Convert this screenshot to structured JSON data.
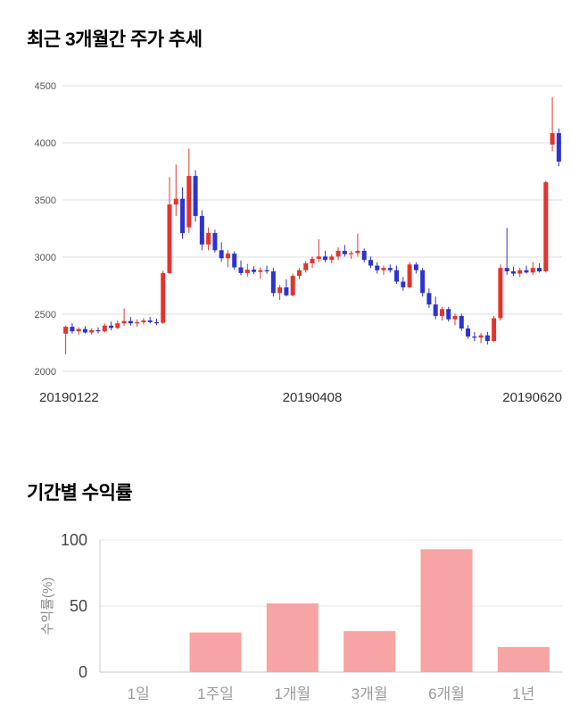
{
  "page": {
    "background": "#ffffff"
  },
  "chart_data": [
    {
      "type": "candlestick",
      "title": "최근 3개월간 주가 추세",
      "ylim": [
        2000,
        4500
      ],
      "yticks": [
        2000,
        2500,
        3000,
        3500,
        4000,
        4500
      ],
      "xtick_labels": [
        "20190122",
        "20190408",
        "20190620"
      ],
      "up_color": "#e3342c",
      "down_color": "#2d33cf",
      "grid_color": "#dcdcdc",
      "tick_color": "#555555",
      "date_color": "#333333",
      "candles": [
        [
          2330,
          2400,
          2150,
          2390
        ],
        [
          2390,
          2420,
          2330,
          2350
        ],
        [
          2350,
          2385,
          2320,
          2370
        ],
        [
          2370,
          2395,
          2330,
          2340
        ],
        [
          2340,
          2375,
          2320,
          2360
        ],
        [
          2360,
          2385,
          2330,
          2350
        ],
        [
          2350,
          2420,
          2340,
          2400
        ],
        [
          2400,
          2435,
          2360,
          2380
        ],
        [
          2380,
          2445,
          2370,
          2420
        ],
        [
          2420,
          2550,
          2400,
          2440
        ],
        [
          2440,
          2475,
          2400,
          2420
        ],
        [
          2420,
          2455,
          2390,
          2430
        ],
        [
          2430,
          2465,
          2410,
          2445
        ],
        [
          2445,
          2475,
          2420,
          2430
        ],
        [
          2430,
          2460,
          2405,
          2425
        ],
        [
          2425,
          2880,
          2415,
          2860
        ],
        [
          2860,
          3700,
          2850,
          3460
        ],
        [
          3460,
          3810,
          3360,
          3510
        ],
        [
          3510,
          3610,
          3160,
          3210
        ],
        [
          3260,
          3950,
          3210,
          3710
        ],
        [
          3710,
          3760,
          3310,
          3360
        ],
        [
          3360,
          3410,
          3060,
          3110
        ],
        [
          3110,
          3260,
          3060,
          3210
        ],
        [
          3210,
          3240,
          3040,
          3060
        ],
        [
          3060,
          3130,
          2960,
          2990
        ],
        [
          2990,
          3060,
          2910,
          3030
        ],
        [
          3030,
          3050,
          2890,
          2910
        ],
        [
          2910,
          2970,
          2840,
          2860
        ],
        [
          2860,
          2940,
          2830,
          2890
        ],
        [
          2890,
          2920,
          2850,
          2870
        ],
        [
          2870,
          2910,
          2810,
          2885
        ],
        [
          2885,
          2925,
          2855,
          2875
        ],
        [
          2875,
          2905,
          2655,
          2685
        ],
        [
          2685,
          2755,
          2625,
          2735
        ],
        [
          2735,
          2805,
          2655,
          2665
        ],
        [
          2665,
          2855,
          2655,
          2835
        ],
        [
          2835,
          2905,
          2805,
          2885
        ],
        [
          2885,
          2965,
          2865,
          2945
        ],
        [
          2945,
          3005,
          2905,
          2985
        ],
        [
          2985,
          3155,
          2955,
          3005
        ],
        [
          3005,
          3055,
          2955,
          2975
        ],
        [
          2975,
          3025,
          2945,
          3005
        ],
        [
          3005,
          3085,
          2975,
          3055
        ],
        [
          3055,
          3105,
          3005,
          3025
        ],
        [
          3025,
          3055,
          2985,
          3035
        ],
        [
          3035,
          3205,
          3005,
          3055
        ],
        [
          3055,
          3075,
          2955,
          2975
        ],
        [
          2975,
          3005,
          2905,
          2925
        ],
        [
          2925,
          2955,
          2855,
          2885
        ],
        [
          2885,
          2925,
          2845,
          2905
        ],
        [
          2905,
          2935,
          2865,
          2885
        ],
        [
          2885,
          2925,
          2765,
          2785
        ],
        [
          2785,
          2825,
          2705,
          2735
        ],
        [
          2735,
          2955,
          2725,
          2935
        ],
        [
          2935,
          2955,
          2855,
          2885
        ],
        [
          2885,
          2905,
          2655,
          2685
        ],
        [
          2685,
          2725,
          2555,
          2585
        ],
        [
          2585,
          2655,
          2455,
          2485
        ],
        [
          2485,
          2565,
          2445,
          2545
        ],
        [
          2545,
          2565,
          2435,
          2455
        ],
        [
          2455,
          2505,
          2405,
          2485
        ],
        [
          2485,
          2505,
          2355,
          2375
        ],
        [
          2375,
          2405,
          2285,
          2305
        ],
        [
          2305,
          2345,
          2265,
          2295
        ],
        [
          2295,
          2335,
          2245,
          2315
        ],
        [
          2315,
          2345,
          2235,
          2265
        ],
        [
          2265,
          2485,
          2255,
          2465
        ],
        [
          2465,
          2935,
          2445,
          2905
        ],
        [
          2905,
          3255,
          2845,
          2875
        ],
        [
          2875,
          2915,
          2835,
          2855
        ],
        [
          2855,
          2905,
          2825,
          2885
        ],
        [
          2885,
          2925,
          2855,
          2865
        ],
        [
          2865,
          2955,
          2845,
          2905
        ],
        [
          2905,
          2945,
          2865,
          2875
        ],
        [
          2875,
          3665,
          2865,
          3655
        ],
        [
          3985,
          4400,
          3925,
          4085
        ],
        [
          4085,
          4125,
          3795,
          3835
        ]
      ]
    },
    {
      "type": "bar",
      "title": "기간별 수익률",
      "categories": [
        "1일",
        "1주일",
        "1개월",
        "3개월",
        "6개월",
        "1년"
      ],
      "values": [
        0,
        30,
        52,
        31,
        93,
        19
      ],
      "ylabel": "수익률(%)",
      "ylim": [
        0,
        100
      ],
      "yticks": [
        0,
        50,
        100
      ],
      "bar_color": "#f7a4a4",
      "grid_color": "#e6e6e6",
      "axis_color": "#c9c9c9",
      "ytick_color": "#444444",
      "xlabel_color": "#9a9a9a",
      "ylabel_color": "#8a8a8a"
    }
  ]
}
